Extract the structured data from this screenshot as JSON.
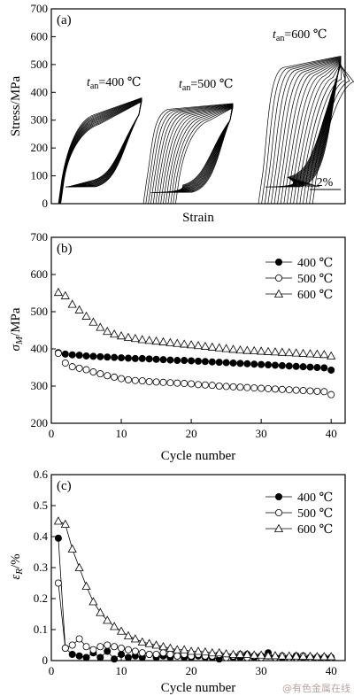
{
  "chart_data": [
    {
      "type": "line",
      "panel_label": "(a)",
      "ylabel": "Stress/MPa",
      "xlabel": "Strain",
      "ylim": [
        0,
        700
      ],
      "y_ticks": [
        0,
        100,
        200,
        300,
        400,
        500,
        600,
        700
      ],
      "annotations": [
        {
          "prefix": "t",
          "subscript": "an",
          "rest": "=400 ℃"
        },
        {
          "prefix": "t",
          "subscript": "an",
          "rest": "=500 ℃"
        },
        {
          "prefix": "t",
          "subscript": "an",
          "rest": "=600 ℃"
        }
      ],
      "scale_bar": "2%",
      "loops": [
        {
          "name": "400",
          "peak": 380,
          "yield_up": 300,
          "yield_down": 80
        },
        {
          "name": "500",
          "peak": 360,
          "yield_up": 320,
          "yield_down": 60
        },
        {
          "name": "600",
          "peak": 530,
          "yield_up": 470,
          "yield_down": 80
        }
      ]
    },
    {
      "type": "scatter",
      "panel_label": "(b)",
      "ylabel_symbol": "σ",
      "ylabel_subscript": "M",
      "ylabel_unit": "/MPa",
      "xlabel": "Cycle number",
      "xlim": [
        0,
        42
      ],
      "ylim": [
        200,
        700
      ],
      "x_ticks": [
        0,
        10,
        20,
        30,
        40
      ],
      "y_ticks": [
        200,
        300,
        400,
        500,
        600,
        700
      ],
      "legend_position": "top-right",
      "series": [
        {
          "name": "400 ℃",
          "marker": "filled-circle",
          "x": [
            1,
            2,
            3,
            4,
            5,
            6,
            7,
            8,
            9,
            10,
            11,
            12,
            13,
            14,
            15,
            16,
            17,
            18,
            19,
            20,
            21,
            22,
            23,
            24,
            25,
            26,
            27,
            28,
            29,
            30,
            31,
            32,
            33,
            34,
            35,
            36,
            37,
            38,
            39,
            40
          ],
          "values": [
            390,
            386,
            384,
            383,
            381,
            380,
            379,
            378,
            377,
            376,
            375,
            374,
            374,
            373,
            372,
            371,
            370,
            369,
            369,
            368,
            367,
            366,
            365,
            364,
            363,
            362,
            361,
            360,
            359,
            358,
            357,
            356,
            355,
            354,
            353,
            352,
            351,
            350,
            349,
            343
          ]
        },
        {
          "name": "500 ℃",
          "marker": "open-circle",
          "x": [
            1,
            2,
            3,
            4,
            5,
            6,
            7,
            8,
            9,
            10,
            11,
            12,
            13,
            14,
            15,
            16,
            17,
            18,
            19,
            20,
            21,
            22,
            23,
            24,
            25,
            26,
            27,
            28,
            29,
            30,
            31,
            32,
            33,
            34,
            35,
            36,
            37,
            38,
            39,
            40
          ],
          "values": [
            388,
            362,
            352,
            348,
            344,
            338,
            333,
            328,
            324,
            320,
            317,
            315,
            314,
            312,
            311,
            310,
            309,
            308,
            307,
            306,
            304,
            303,
            302,
            300,
            299,
            298,
            297,
            296,
            295,
            294,
            293,
            292,
            291,
            290,
            289,
            288,
            287,
            286,
            285,
            277
          ]
        },
        {
          "name": "600 ℃",
          "marker": "open-triangle",
          "x": [
            1,
            2,
            3,
            4,
            5,
            6,
            7,
            8,
            9,
            10,
            11,
            12,
            13,
            14,
            15,
            16,
            17,
            18,
            19,
            20,
            21,
            22,
            23,
            24,
            25,
            26,
            27,
            28,
            29,
            30,
            31,
            32,
            33,
            34,
            35,
            36,
            37,
            38,
            39,
            40
          ],
          "values": [
            552,
            543,
            520,
            505,
            488,
            472,
            458,
            447,
            440,
            435,
            431,
            428,
            425,
            423,
            421,
            419,
            417,
            415,
            413,
            411,
            409,
            407,
            405,
            403,
            401,
            399,
            397,
            396,
            395,
            394,
            393,
            392,
            391,
            390,
            389,
            388,
            387,
            386,
            385,
            381
          ]
        }
      ]
    },
    {
      "type": "line",
      "panel_label": "(c)",
      "ylabel_symbol": "ε",
      "ylabel_subscript": "R",
      "ylabel_unit": "/%",
      "xlabel": "Cycle number",
      "xlim": [
        0,
        42
      ],
      "ylim": [
        0,
        0.6
      ],
      "x_ticks": [
        0,
        10,
        20,
        30,
        40
      ],
      "y_ticks": [
        0,
        0.1,
        0.2,
        0.3,
        0.4,
        0.5,
        0.6
      ],
      "y_tick_labels": [
        "0",
        "0.1",
        "0.2",
        "0.3",
        "0.4",
        "0.5",
        "0.6"
      ],
      "legend_position": "top-right",
      "series": [
        {
          "name": "400 ℃",
          "marker": "filled-circle",
          "x": [
            1,
            2,
            3,
            4,
            5,
            6,
            7,
            8,
            9,
            10,
            11,
            12,
            13,
            14,
            15,
            16,
            17,
            18,
            19,
            20,
            21,
            22,
            23,
            24,
            25,
            26,
            27,
            28,
            29,
            30,
            31,
            32,
            33,
            34,
            35,
            36,
            37,
            38,
            39,
            40
          ],
          "values": [
            0.395,
            0.04,
            0.02,
            0.015,
            0.01,
            0.025,
            0.01,
            0.03,
            0.005,
            0.02,
            0.01,
            0.015,
            0.01,
            0.02,
            0.01,
            0.015,
            0.01,
            0.015,
            0.01,
            0.01,
            0.015,
            0.01,
            0.01,
            0.005,
            0.015,
            0.01,
            0.01,
            0.02,
            0.01,
            0.015,
            0.025,
            0.01,
            0.01,
            0.01,
            0.015,
            0.01,
            0.01,
            0.01,
            0.01,
            0.01
          ]
        },
        {
          "name": "500 ℃",
          "marker": "open-circle",
          "x": [
            1,
            2,
            3,
            4,
            5,
            6,
            7,
            8,
            9,
            10,
            11,
            12,
            13,
            14,
            15,
            16,
            17,
            18,
            19,
            20,
            21,
            22,
            23,
            24,
            25,
            26,
            27,
            28,
            29,
            30,
            31,
            32,
            33,
            34,
            35,
            36,
            37,
            38,
            39,
            40
          ],
          "values": [
            0.25,
            0.04,
            0.05,
            0.07,
            0.045,
            0.035,
            0.045,
            0.05,
            0.045,
            0.04,
            0.035,
            0.03,
            0.025,
            0.02,
            0.02,
            0.025,
            0.02,
            0.015,
            0.02,
            0.015,
            0.02,
            0.015,
            0.015,
            0.02,
            0.01,
            0.015,
            0.02,
            0.01,
            0.015,
            0.01,
            0.015,
            0.01,
            0.015,
            0.01,
            0.01,
            0.015,
            0.01,
            0.01,
            0.01,
            0.01
          ]
        },
        {
          "name": "600 ℃",
          "marker": "open-triangle",
          "x": [
            1,
            2,
            3,
            4,
            5,
            6,
            7,
            8,
            9,
            10,
            11,
            12,
            13,
            14,
            15,
            16,
            17,
            18,
            19,
            20,
            21,
            22,
            23,
            24,
            25,
            26,
            27,
            28,
            29,
            30,
            31,
            32,
            33,
            34,
            35,
            36,
            37,
            38,
            39,
            40
          ],
          "values": [
            0.45,
            0.44,
            0.36,
            0.3,
            0.24,
            0.19,
            0.155,
            0.13,
            0.11,
            0.095,
            0.08,
            0.07,
            0.06,
            0.055,
            0.05,
            0.045,
            0.04,
            0.035,
            0.035,
            0.03,
            0.03,
            0.028,
            0.025,
            0.025,
            0.022,
            0.02,
            0.02,
            0.02,
            0.018,
            0.018,
            0.016,
            0.016,
            0.015,
            0.015,
            0.015,
            0.014,
            0.014,
            0.013,
            0.013,
            0.013
          ]
        }
      ]
    }
  ],
  "watermark": "@有色金属在线"
}
